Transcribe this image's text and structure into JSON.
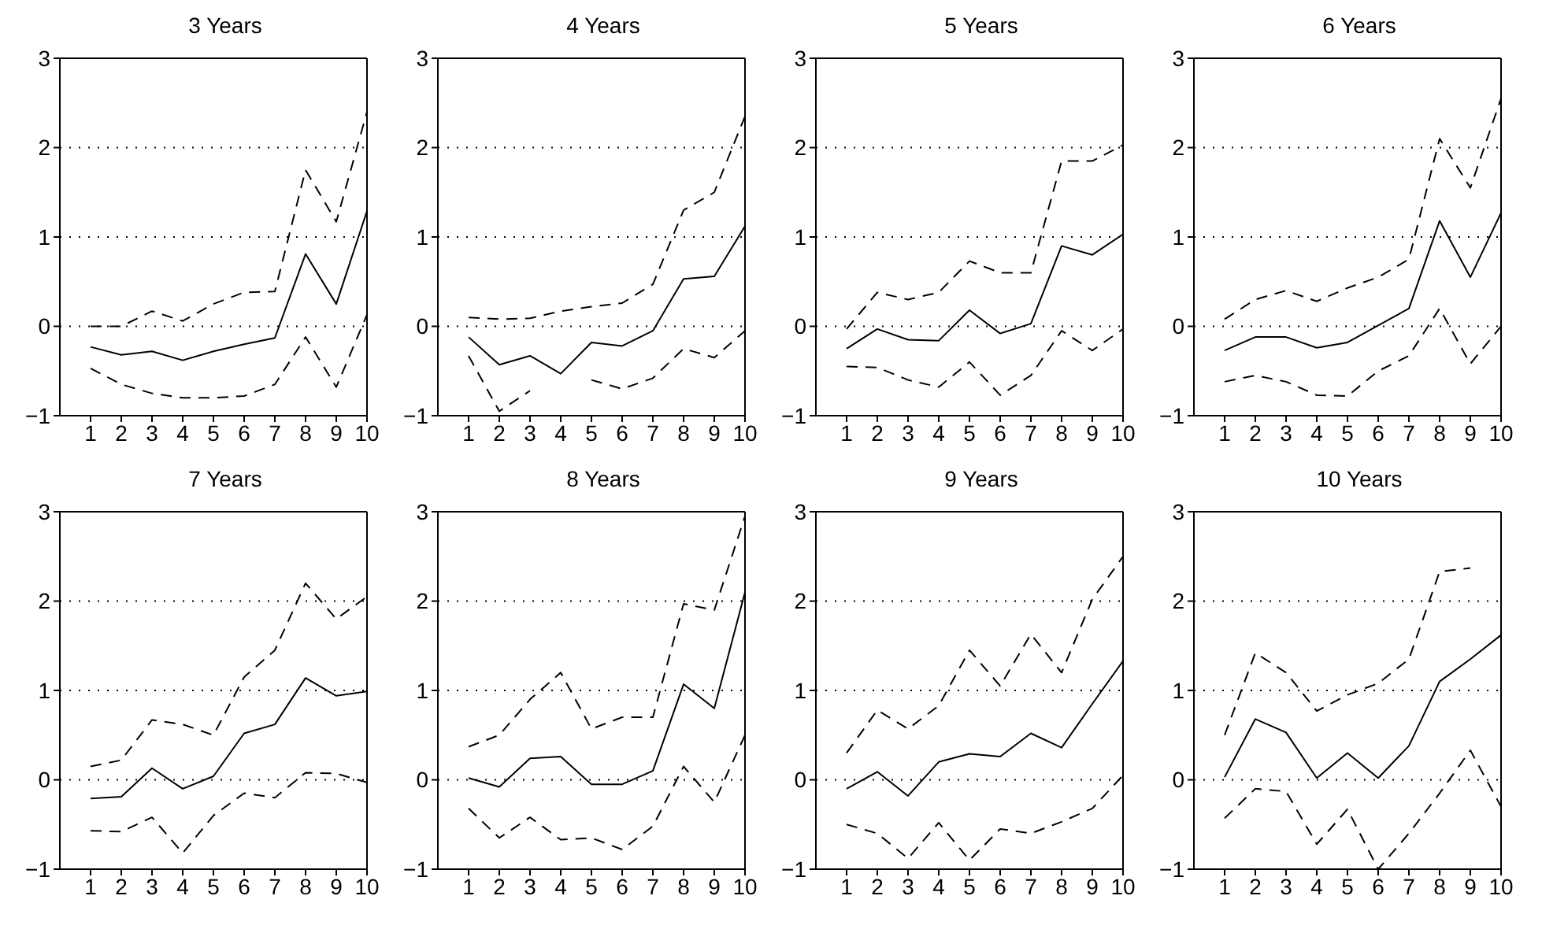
{
  "chart_data": [
    {
      "type": "line",
      "title": "3 Years",
      "x": [
        1,
        2,
        3,
        4,
        5,
        6,
        7,
        8,
        9,
        10
      ],
      "xlim": [
        0,
        10
      ],
      "xticks": [
        1,
        2,
        3,
        4,
        5,
        6,
        7,
        8,
        9,
        10
      ],
      "ylim": [
        -1,
        3
      ],
      "yticks": [
        -1,
        0,
        1,
        2,
        3
      ],
      "grid": "y",
      "series": [
        {
          "color": "#000000",
          "line_style": "dashed",
          "values": [
            0,
            0,
            0.17,
            0.06,
            0.25,
            0.38,
            0.39,
            1.75,
            1.17,
            2.4
          ]
        },
        {
          "color": "#000000",
          "line_style": "solid",
          "values": [
            -0.23,
            -0.32,
            -0.28,
            -0.38,
            -0.28,
            -0.2,
            -0.13,
            0.81,
            0.25,
            1.29
          ]
        },
        {
          "color": "#000000",
          "line_style": "dashed",
          "values": [
            -0.47,
            -0.65,
            -0.75,
            -0.8,
            -0.8,
            -0.78,
            -0.65,
            -0.12,
            -0.68,
            0.13
          ]
        }
      ]
    },
    {
      "type": "line",
      "title": "4 Years",
      "x": [
        1,
        2,
        3,
        4,
        5,
        6,
        7,
        8,
        9,
        10
      ],
      "xlim": [
        0,
        10
      ],
      "xticks": [
        1,
        2,
        3,
        4,
        5,
        6,
        7,
        8,
        9,
        10
      ],
      "ylim": [
        -1,
        3
      ],
      "yticks": [
        -1,
        0,
        1,
        2,
        3
      ],
      "grid": "y",
      "series": [
        {
          "color": "#000000",
          "line_style": "dashed",
          "values": [
            0.1,
            0.08,
            0.09,
            0.17,
            0.22,
            0.26,
            0.47,
            1.3,
            1.5,
            2.35
          ]
        },
        {
          "color": "#000000",
          "line_style": "solid",
          "values": [
            -0.12,
            -0.43,
            -0.33,
            -0.53,
            -0.18,
            -0.22,
            -0.05,
            0.53,
            0.56,
            1.12
          ]
        },
        {
          "color": "#000000",
          "line_style": "dashed",
          "values": [
            -0.33,
            -0.95,
            -0.72,
            null,
            -0.6,
            -0.7,
            -0.58,
            -0.25,
            -0.35,
            -0.05
          ]
        }
      ]
    },
    {
      "type": "line",
      "title": "5 Years",
      "x": [
        1,
        2,
        3,
        4,
        5,
        6,
        7,
        8,
        9,
        10
      ],
      "xlim": [
        0,
        10
      ],
      "xticks": [
        1,
        2,
        3,
        4,
        5,
        6,
        7,
        8,
        9,
        10
      ],
      "ylim": [
        -1,
        3
      ],
      "yticks": [
        -1,
        0,
        1,
        2,
        3
      ],
      "grid": "y",
      "series": [
        {
          "color": "#000000",
          "line_style": "dashed",
          "values": [
            -0.03,
            0.38,
            0.3,
            0.38,
            0.73,
            0.6,
            0.6,
            1.85,
            1.85,
            2.03
          ]
        },
        {
          "color": "#000000",
          "line_style": "solid",
          "values": [
            -0.25,
            -0.03,
            -0.15,
            -0.16,
            0.18,
            -0.08,
            0.03,
            0.9,
            0.8,
            1.03
          ]
        },
        {
          "color": "#000000",
          "line_style": "dashed",
          "values": [
            -0.45,
            -0.46,
            -0.6,
            -0.68,
            -0.4,
            -0.77,
            -0.55,
            -0.05,
            -0.27,
            -0.03
          ]
        }
      ]
    },
    {
      "type": "line",
      "title": "6 Years",
      "x": [
        1,
        2,
        3,
        4,
        5,
        6,
        7,
        8,
        9,
        10
      ],
      "xlim": [
        0,
        10
      ],
      "xticks": [
        1,
        2,
        3,
        4,
        5,
        6,
        7,
        8,
        9,
        10
      ],
      "ylim": [
        -1,
        3
      ],
      "yticks": [
        -1,
        0,
        1,
        2,
        3
      ],
      "grid": "y",
      "series": [
        {
          "color": "#000000",
          "line_style": "dashed",
          "values": [
            0.08,
            0.3,
            0.4,
            0.28,
            0.43,
            0.55,
            0.75,
            2.1,
            1.55,
            2.55
          ]
        },
        {
          "color": "#000000",
          "line_style": "solid",
          "values": [
            -0.27,
            -0.12,
            -0.12,
            -0.24,
            -0.18,
            0.01,
            0.2,
            1.18,
            0.55,
            1.27
          ]
        },
        {
          "color": "#000000",
          "line_style": "dashed",
          "values": [
            -0.62,
            -0.55,
            -0.62,
            -0.77,
            -0.78,
            -0.5,
            -0.33,
            0.2,
            -0.42,
            0
          ]
        }
      ]
    },
    {
      "type": "line",
      "title": "7 Years",
      "x": [
        1,
        2,
        3,
        4,
        5,
        6,
        7,
        8,
        9,
        10
      ],
      "xlim": [
        0,
        10
      ],
      "xticks": [
        1,
        2,
        3,
        4,
        5,
        6,
        7,
        8,
        9,
        10
      ],
      "ylim": [
        -1,
        3
      ],
      "yticks": [
        -1,
        0,
        1,
        2,
        3
      ],
      "grid": "y",
      "series": [
        {
          "color": "#000000",
          "line_style": "dashed",
          "values": [
            0.15,
            0.22,
            0.67,
            0.62,
            0.5,
            1.15,
            1.45,
            2.2,
            1.8,
            2.05
          ]
        },
        {
          "color": "#000000",
          "line_style": "solid",
          "values": [
            -0.21,
            -0.19,
            0.13,
            -0.1,
            0.04,
            0.52,
            0.62,
            1.14,
            0.94,
            0.99
          ]
        },
        {
          "color": "#000000",
          "line_style": "dashed",
          "values": [
            -0.57,
            -0.58,
            -0.42,
            -0.82,
            -0.4,
            -0.15,
            -0.2,
            0.08,
            0.07,
            -0.03
          ]
        }
      ]
    },
    {
      "type": "line",
      "title": "8 Years",
      "x": [
        1,
        2,
        3,
        4,
        5,
        6,
        7,
        8,
        9,
        10
      ],
      "xlim": [
        0,
        10
      ],
      "xticks": [
        1,
        2,
        3,
        4,
        5,
        6,
        7,
        8,
        9,
        10
      ],
      "ylim": [
        -1,
        3
      ],
      "yticks": [
        -1,
        0,
        1,
        2,
        3
      ],
      "grid": "y",
      "series": [
        {
          "color": "#000000",
          "line_style": "dashed",
          "values": [
            0.37,
            0.5,
            0.9,
            1.2,
            0.57,
            0.7,
            0.7,
            1.97,
            1.9,
            2.95
          ]
        },
        {
          "color": "#000000",
          "line_style": "solid",
          "values": [
            0.02,
            -0.08,
            0.24,
            0.26,
            -0.05,
            -0.05,
            0.1,
            1.07,
            0.8,
            2.1
          ]
        },
        {
          "color": "#000000",
          "line_style": "dashed",
          "values": [
            -0.32,
            -0.65,
            -0.42,
            -0.67,
            -0.65,
            -0.78,
            -0.52,
            0.15,
            -0.25,
            0.5
          ]
        }
      ]
    },
    {
      "type": "line",
      "title": "9 Years",
      "x": [
        1,
        2,
        3,
        4,
        5,
        6,
        7,
        8,
        9,
        10
      ],
      "xlim": [
        0,
        10
      ],
      "xticks": [
        1,
        2,
        3,
        4,
        5,
        6,
        7,
        8,
        9,
        10
      ],
      "ylim": [
        -1,
        3
      ],
      "yticks": [
        -1,
        0,
        1,
        2,
        3
      ],
      "grid": "y",
      "series": [
        {
          "color": "#000000",
          "line_style": "dashed",
          "values": [
            0.3,
            0.78,
            0.57,
            0.83,
            1.45,
            1.05,
            1.63,
            1.2,
            2.02,
            2.5
          ]
        },
        {
          "color": "#000000",
          "line_style": "solid",
          "values": [
            -0.1,
            0.09,
            -0.18,
            0.2,
            0.29,
            0.26,
            0.52,
            0.36,
            0.85,
            1.33
          ]
        },
        {
          "color": "#000000",
          "line_style": "dashed",
          "values": [
            -0.5,
            -0.6,
            -0.88,
            -0.48,
            -0.9,
            -0.55,
            -0.6,
            -0.47,
            -0.32,
            0.05
          ]
        }
      ]
    },
    {
      "type": "line",
      "title": "10 Years",
      "x": [
        1,
        2,
        3,
        4,
        5,
        6,
        7,
        8,
        9,
        10
      ],
      "xlim": [
        0,
        10
      ],
      "xticks": [
        1,
        2,
        3,
        4,
        5,
        6,
        7,
        8,
        9,
        10
      ],
      "ylim": [
        -1,
        3
      ],
      "yticks": [
        -1,
        0,
        1,
        2,
        3
      ],
      "grid": "y",
      "series": [
        {
          "color": "#000000",
          "line_style": "dashed",
          "values": [
            0.5,
            1.42,
            1.2,
            0.77,
            0.95,
            1.08,
            1.35,
            2.33,
            2.37,
            null
          ]
        },
        {
          "color": "#000000",
          "line_style": "solid",
          "values": [
            0.03,
            0.68,
            0.53,
            0.02,
            0.3,
            0.02,
            0.38,
            1.1,
            1.35,
            1.62
          ]
        },
        {
          "color": "#000000",
          "line_style": "dashed",
          "values": [
            -0.43,
            -0.1,
            -0.13,
            -0.72,
            -0.33,
            -1,
            -0.6,
            -0.15,
            0.33,
            -0.3
          ]
        }
      ]
    }
  ]
}
